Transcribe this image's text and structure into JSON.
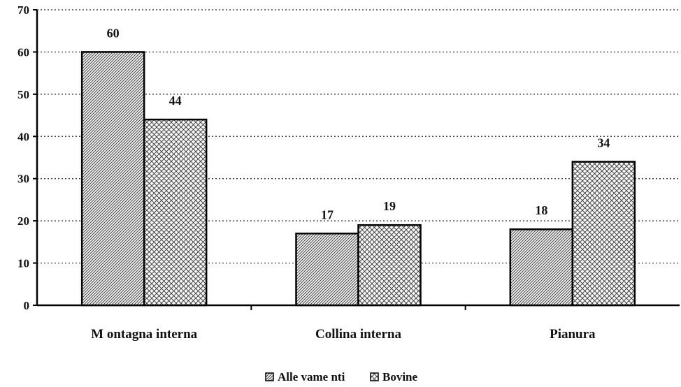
{
  "chart_data": {
    "type": "bar",
    "categories": [
      "M ontagna interna",
      "Collina interna",
      "Pianura"
    ],
    "series": [
      {
        "name": "Alle vame nti",
        "values": [
          60,
          17,
          18
        ],
        "pattern": "diagonal-hatch"
      },
      {
        "name": "Bovine",
        "values": [
          44,
          19,
          34
        ],
        "pattern": "crosshatch"
      }
    ],
    "ylim": [
      0,
      70
    ],
    "yticks": [
      "0",
      "10",
      "20",
      "30",
      "40",
      "50",
      "60",
      "70"
    ],
    "grid": true,
    "grid_style": "dotted",
    "legend_position": "bottom",
    "data_labels": true
  }
}
